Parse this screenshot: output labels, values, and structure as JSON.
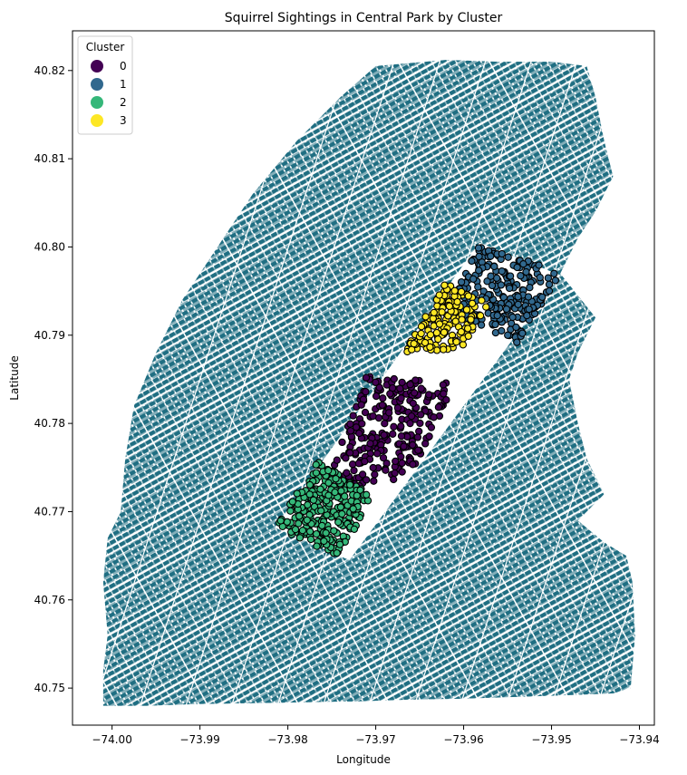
{
  "chart_data": {
    "type": "scatter",
    "title": "Squirrel Sightings in Central Park by Cluster",
    "xlabel": "Longitude",
    "ylabel": "Latitude",
    "xlim": [
      -74.0045,
      -73.9383
    ],
    "ylim": [
      40.7458,
      40.8245
    ],
    "x_ticks": [
      -74.0,
      -73.99,
      -73.98,
      -73.97,
      -73.96,
      -73.95,
      -73.94
    ],
    "x_tick_labels": [
      "−74.00",
      "−73.99",
      "−73.98",
      "−73.97",
      "−73.96",
      "−73.95",
      "−73.94"
    ],
    "y_ticks": [
      40.75,
      40.76,
      40.77,
      40.78,
      40.79,
      40.8,
      40.81,
      40.82
    ],
    "y_tick_labels": [
      "40.75",
      "40.76",
      "40.77",
      "40.78",
      "40.79",
      "40.80",
      "40.81",
      "40.82"
    ],
    "grid": false,
    "legend": {
      "title": "Cluster",
      "placement": "top-left"
    },
    "basemap": {
      "description_color": "#1f6e82",
      "outline": [
        [
          -74.001,
          40.748
        ],
        [
          -73.996,
          40.748
        ],
        [
          -73.99,
          40.7482
        ],
        [
          -73.984,
          40.7483
        ],
        [
          -73.978,
          40.7484
        ],
        [
          -73.972,
          40.7485
        ],
        [
          -73.966,
          40.7487
        ],
        [
          -73.96,
          40.7488
        ],
        [
          -73.954,
          40.749
        ],
        [
          -73.948,
          40.7492
        ],
        [
          -73.943,
          40.7494
        ],
        [
          -73.941,
          40.75
        ],
        [
          -73.9405,
          40.756
        ],
        [
          -73.9408,
          40.762
        ],
        [
          -73.9415,
          40.765
        ],
        [
          -73.944,
          40.7665
        ],
        [
          -73.947,
          40.769
        ],
        [
          -73.944,
          40.772
        ],
        [
          -73.946,
          40.776
        ],
        [
          -73.947,
          40.78
        ],
        [
          -73.948,
          40.785
        ],
        [
          -73.947,
          40.788
        ],
        [
          -73.945,
          40.792
        ],
        [
          -73.949,
          40.797
        ],
        [
          -73.947,
          40.801
        ],
        [
          -73.945,
          40.804
        ],
        [
          -73.943,
          40.808
        ],
        [
          -73.944,
          40.812
        ],
        [
          -73.945,
          40.817
        ],
        [
          -73.946,
          40.8205
        ],
        [
          -73.95,
          40.821
        ],
        [
          -73.956,
          40.821
        ],
        [
          -73.962,
          40.8212
        ],
        [
          -73.97,
          40.8205
        ],
        [
          -73.974,
          40.817
        ],
        [
          -73.979,
          40.812
        ],
        [
          -73.984,
          40.806
        ],
        [
          -73.988,
          40.8
        ],
        [
          -73.992,
          40.794
        ],
        [
          -73.995,
          40.788
        ],
        [
          -73.9975,
          40.782
        ],
        [
          -73.9985,
          40.776
        ],
        [
          -73.999,
          40.77
        ],
        [
          -74.0005,
          40.767
        ],
        [
          -74.001,
          40.762
        ],
        [
          -74.0005,
          40.756
        ],
        [
          -74.001,
          40.752
        ]
      ],
      "park": [
        [
          -73.9815,
          40.7682
        ],
        [
          -73.973,
          40.7645
        ],
        [
          -73.949,
          40.7968
        ],
        [
          -73.9582,
          40.8005
        ]
      ],
      "park_inner": [
        [
          -73.971,
          40.773
        ],
        [
          -73.9655,
          40.774
        ],
        [
          -73.958,
          40.786
        ],
        [
          -73.963,
          40.79
        ]
      ]
    },
    "series": [
      {
        "name": "0",
        "color": "#440154",
        "center": [
          -73.97,
          40.78
        ],
        "spread": [
          0.004,
          0.005
        ],
        "box": [
          [
            -73.976,
            40.772
          ],
          [
            -73.966,
            40.774
          ],
          [
            -73.961,
            40.7845
          ],
          [
            -73.971,
            40.7855
          ]
        ],
        "count": 260
      },
      {
        "name": "1",
        "color": "#31688e",
        "center": [
          -73.956,
          40.7955
        ],
        "spread": [
          0.004,
          0.0025
        ],
        "box": [
          [
            -73.962,
            40.793
          ],
          [
            -73.954,
            40.789
          ],
          [
            -73.949,
            40.797
          ],
          [
            -73.958,
            40.8005
          ]
        ],
        "count": 230
      },
      {
        "name": "2",
        "color": "#35b779",
        "center": [
          -73.9765,
          40.77
        ],
        "spread": [
          0.0035,
          0.003
        ],
        "box": [
          [
            -73.9815,
            40.7682
          ],
          [
            -73.974,
            40.7648
          ],
          [
            -73.9705,
            40.7718
          ],
          [
            -73.9765,
            40.7758
          ]
        ],
        "count": 260
      },
      {
        "name": "3",
        "color": "#fde725",
        "center": [
          -73.9625,
          40.7905
        ],
        "spread": [
          0.003,
          0.0025
        ],
        "box": [
          [
            -73.967,
            40.788
          ],
          [
            -73.96,
            40.7885
          ],
          [
            -73.957,
            40.7935
          ],
          [
            -73.962,
            40.796
          ]
        ],
        "count": 150
      }
    ]
  }
}
